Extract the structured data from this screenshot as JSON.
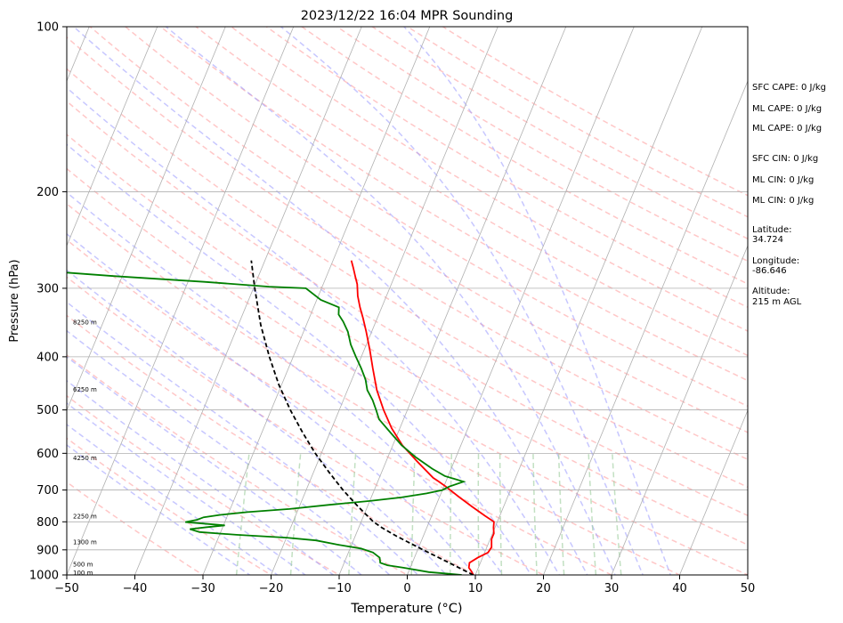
{
  "chart_data": {
    "type": "skew-t log-p sounding",
    "title": "2023/12/22 16:04 MPR Sounding",
    "xlabel": "Temperature (°C)",
    "ylabel": "Pressure (hPa)",
    "xlim": [
      -50,
      50
    ],
    "ylim": [
      1000,
      100
    ],
    "y_scale": "log",
    "x_ticks": [
      -50,
      -40,
      -30,
      -20,
      -10,
      0,
      10,
      20,
      30,
      40,
      50
    ],
    "x_tick_labels": [
      "−50",
      "−40",
      "−30",
      "−20",
      "−10",
      "0",
      "10",
      "20",
      "30",
      "40",
      "50"
    ],
    "y_ticks": [
      1000,
      900,
      800,
      700,
      600,
      500,
      400,
      300,
      200,
      100
    ],
    "y_tick_labels": [
      "1000",
      "900",
      "800",
      "700",
      "600",
      "500",
      "400",
      "300",
      "200",
      "100"
    ],
    "grid": true,
    "height_labels": [
      {
        "pressure": 988,
        "label": "100 m"
      },
      {
        "pressure": 955,
        "label": "500 m"
      },
      {
        "pressure": 870,
        "label": "1300 m"
      },
      {
        "pressure": 780,
        "label": "2250 m"
      },
      {
        "pressure": 610,
        "label": "4250 m"
      },
      {
        "pressure": 458,
        "label": "6250 m"
      },
      {
        "pressure": 345,
        "label": "8250 m"
      }
    ],
    "series": [
      {
        "kind": "temperature",
        "color": "#ff0000",
        "points": [
          [
            1000,
            9.7
          ],
          [
            985,
            9.2
          ],
          [
            970,
            8.6
          ],
          [
            950,
            8.4
          ],
          [
            930,
            9.3
          ],
          [
            910,
            10.5
          ],
          [
            890,
            10.7
          ],
          [
            860,
            10.2
          ],
          [
            840,
            10.2
          ],
          [
            820,
            9.8
          ],
          [
            800,
            9.5
          ],
          [
            780,
            7.8
          ],
          [
            750,
            5.3
          ],
          [
            720,
            2.8
          ],
          [
            690,
            0.3
          ],
          [
            675,
            -1.1
          ],
          [
            665,
            -2.1
          ],
          [
            620,
            -5.5
          ],
          [
            580,
            -8.6
          ],
          [
            540,
            -11.2
          ],
          [
            500,
            -13.5
          ],
          [
            460,
            -15.7
          ],
          [
            420,
            -17.6
          ],
          [
            390,
            -19.1
          ],
          [
            360,
            -20.8
          ],
          [
            340,
            -22.1
          ],
          [
            325,
            -23.2
          ],
          [
            310,
            -24.2
          ],
          [
            295,
            -25.0
          ],
          [
            285,
            -25.8
          ],
          [
            275,
            -26.6
          ],
          [
            267,
            -27.3
          ]
        ]
      },
      {
        "kind": "dewpoint",
        "color": "#008000",
        "points": [
          [
            1000,
            8.0
          ],
          [
            995,
            6.0
          ],
          [
            988,
            3.0
          ],
          [
            970,
            -1.0
          ],
          [
            960,
            -3.5
          ],
          [
            950,
            -4.7
          ],
          [
            930,
            -5.1
          ],
          [
            910,
            -6.4
          ],
          [
            895,
            -8.4
          ],
          [
            880,
            -12.2
          ],
          [
            865,
            -15.5
          ],
          [
            855,
            -20.0
          ],
          [
            845,
            -27.5
          ],
          [
            835,
            -33.1
          ],
          [
            825,
            -34.7
          ],
          [
            818,
            -32.3
          ],
          [
            812,
            -29.8
          ],
          [
            806,
            -33.0
          ],
          [
            801,
            -35.8
          ],
          [
            793,
            -34.2
          ],
          [
            785,
            -33.4
          ],
          [
            777,
            -31.1
          ],
          [
            768,
            -27.3
          ],
          [
            758,
            -21.3
          ],
          [
            745,
            -15.7
          ],
          [
            733,
            -10.0
          ],
          [
            722,
            -5.6
          ],
          [
            710,
            -2.1
          ],
          [
            700,
            0.0
          ],
          [
            690,
            0.8
          ],
          [
            676,
            2.6
          ],
          [
            660,
            -0.5
          ],
          [
            640,
            -2.8
          ],
          [
            610,
            -5.9
          ],
          [
            580,
            -8.7
          ],
          [
            550,
            -11.1
          ],
          [
            520,
            -13.6
          ],
          [
            500,
            -14.6
          ],
          [
            480,
            -15.7
          ],
          [
            460,
            -17.1
          ],
          [
            440,
            -18.0
          ],
          [
            420,
            -19.3
          ],
          [
            400,
            -20.8
          ],
          [
            380,
            -22.3
          ],
          [
            360,
            -23.5
          ],
          [
            345,
            -24.8
          ],
          [
            335,
            -25.9
          ],
          [
            325,
            -26.3
          ],
          [
            315,
            -29.4
          ],
          [
            300,
            -32.3
          ],
          [
            298,
            -37.8
          ],
          [
            292,
            -47.6
          ],
          [
            285,
            -61.3
          ],
          [
            280,
            -70.0
          ]
        ]
      },
      {
        "kind": "parcel",
        "color": "#000000",
        "dash": "dashed",
        "points": [
          [
            1000,
            9.7
          ],
          [
            950,
            5.4
          ],
          [
            900,
            0.8
          ],
          [
            850,
            -3.9
          ],
          [
            820,
            -6.6
          ],
          [
            800,
            -8.2
          ],
          [
            750,
            -11.4
          ],
          [
            700,
            -14.6
          ],
          [
            650,
            -17.7
          ],
          [
            600,
            -20.9
          ],
          [
            550,
            -24.0
          ],
          [
            500,
            -27.2
          ],
          [
            450,
            -30.4
          ],
          [
            400,
            -33.5
          ],
          [
            350,
            -36.7
          ],
          [
            300,
            -39.8
          ],
          [
            267,
            -42.0
          ]
        ]
      }
    ],
    "reference_lines": {
      "dry_adiabat_color": "#ff9999",
      "moist_adiabat_color": "#9999ff",
      "mixing_ratio_color": "#99cc99",
      "isotherm_color": "#b0b0b0"
    }
  },
  "stats": [
    {
      "key": "sfc_cape",
      "text": "SFC CAPE: 0 J/kg"
    },
    {
      "key": "ml_cape_1",
      "text": "ML CAPE: 0 J/kg"
    },
    {
      "key": "ml_cape_2",
      "text": "ML CAPE: 0 J/kg"
    },
    {
      "key": "sfc_cin",
      "text": "SFC CIN: 0 J/kg"
    },
    {
      "key": "ml_cin_1",
      "text": "ML CIN: 0 J/kg"
    },
    {
      "key": "ml_cin_2",
      "text": "ML CIN: 0 J/kg"
    }
  ],
  "location": {
    "latitude_label": "Latitude:",
    "latitude": "34.724",
    "longitude_label": "Longitude:",
    "longitude": "-86.646",
    "altitude_label": "Altitude:",
    "altitude": "215 m AGL"
  }
}
